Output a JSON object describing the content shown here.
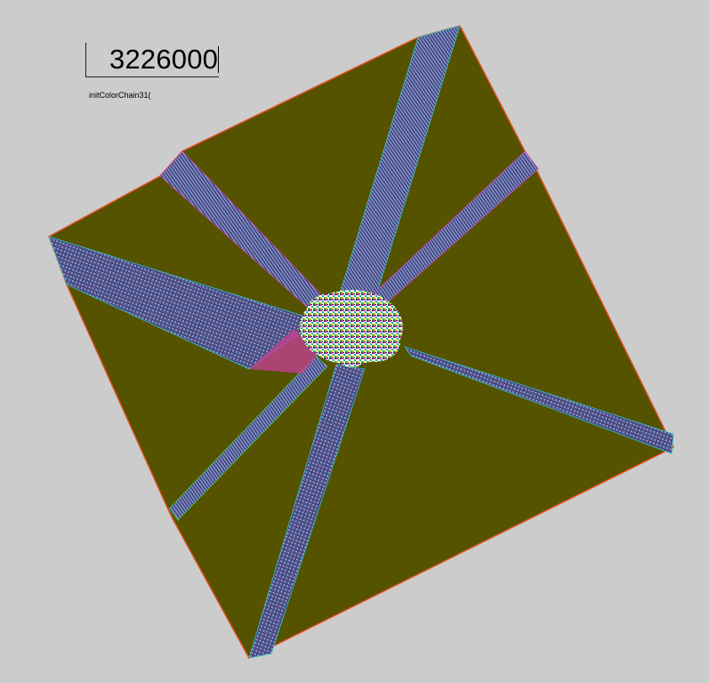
{
  "counter": {
    "value": "3226000"
  },
  "function_label": "initColorChain31(",
  "colors": {
    "background": "#cccccc",
    "field": "#555200",
    "outline": "#e05020",
    "band_dark": "#2a3a70",
    "band_light": "#8a8cc8",
    "accent_magenta": "#d040a0",
    "accent_cyan": "#30c0c0",
    "accent_green": "#40c040"
  }
}
